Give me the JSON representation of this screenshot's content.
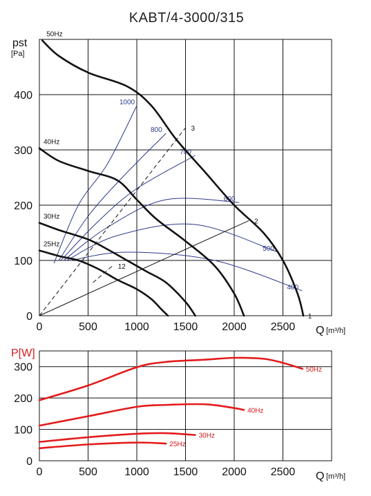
{
  "chart_data": [
    {
      "type": "line",
      "title": "KABT/4-3000/315",
      "ylabel_main": "pst",
      "ylabel_unit": "[Pa]",
      "xlabel_main": "Q",
      "xlabel_unit": "[m³/h]",
      "xlim": [
        0,
        3000
      ],
      "ylim": [
        0,
        500
      ],
      "x_ticks": [
        0,
        500,
        1000,
        1500,
        2000,
        2500
      ],
      "y_ticks": [
        0,
        100,
        200,
        300,
        400
      ],
      "grid": true,
      "speed_curves": [
        {
          "name": "50Hz",
          "x": [
            30,
            200,
            500,
            900,
            1150,
            1400,
            1700,
            2000,
            2300,
            2500,
            2650,
            2710
          ],
          "y": [
            498,
            470,
            440,
            415,
            380,
            320,
            260,
            200,
            150,
            100,
            40,
            0
          ]
        },
        {
          "name": "40Hz",
          "x": [
            0,
            200,
            500,
            800,
            1000,
            1200,
            1500,
            1800,
            2000,
            2100
          ],
          "y": [
            303,
            280,
            262,
            245,
            210,
            175,
            135,
            90,
            40,
            0
          ]
        },
        {
          "name": "30Hz",
          "x": [
            0,
            200,
            500,
            700,
            900,
            1100,
            1300,
            1500,
            1600
          ],
          "y": [
            168,
            155,
            138,
            120,
            100,
            80,
            60,
            25,
            0
          ]
        },
        {
          "name": "25Hz",
          "x": [
            0,
            200,
            400,
            600,
            800,
            1000,
            1150,
            1250,
            1320
          ],
          "y": [
            118,
            108,
            100,
            85,
            65,
            48,
            30,
            12,
            0
          ]
        }
      ],
      "speed_labels": [
        "50Hz",
        "40Hz",
        "30Hz",
        "25Hz"
      ],
      "operating_curves": [
        {
          "name": "1",
          "x": [
            0,
            2700
          ],
          "y": [
            0,
            0
          ]
        },
        {
          "name": "2",
          "x": [
            0,
            2150
          ],
          "y": [
            0,
            172
          ]
        },
        {
          "name": "3",
          "x": [
            0,
            1500
          ],
          "y": [
            0,
            340
          ]
        },
        {
          "name": "12",
          "x": [
            550,
            750
          ],
          "y": [
            60,
            90
          ]
        }
      ],
      "operating_labels": [
        "1",
        "2",
        "3",
        "12"
      ],
      "efficiency_curves": [
        {
          "name": "1000",
          "x": [
            150,
            400,
            700,
            1000
          ],
          "y": [
            95,
            200,
            275,
            380
          ]
        },
        {
          "name": "800",
          "x": [
            200,
            500,
            850,
            1300
          ],
          "y": [
            100,
            180,
            250,
            330
          ]
        },
        {
          "name": "700",
          "x": [
            220,
            600,
            1000,
            1600
          ],
          "y": [
            100,
            170,
            230,
            290
          ]
        },
        {
          "name": "600",
          "x": [
            250,
            700,
            1300,
            2050
          ],
          "y": [
            100,
            160,
            210,
            205
          ]
        },
        {
          "name": "500",
          "x": [
            280,
            800,
            1600,
            2450
          ],
          "y": [
            100,
            145,
            165,
            115
          ]
        },
        {
          "name": "400",
          "x": [
            320,
            900,
            1800,
            2700
          ],
          "y": [
            100,
            115,
            100,
            45
          ]
        }
      ],
      "efficiency_labels": [
        "1000",
        "800",
        "700",
        "600",
        "500",
        "400"
      ]
    },
    {
      "type": "line",
      "ylabel": "P[W]",
      "xlabel_main": "Q",
      "xlabel_unit": "[m³/h]",
      "xlim": [
        0,
        3000
      ],
      "ylim": [
        0,
        350
      ],
      "x_ticks": [
        0,
        500,
        1000,
        1500,
        2000,
        2500
      ],
      "y_ticks": [
        0,
        100,
        200,
        300
      ],
      "grid": true,
      "color": "#e31b1b",
      "series": [
        {
          "name": "50Hz",
          "x": [
            0,
            500,
            1000,
            1300,
            1700,
            2000,
            2300,
            2500,
            2700
          ],
          "y": [
            193,
            240,
            298,
            315,
            322,
            328,
            325,
            312,
            293
          ]
        },
        {
          "name": "40Hz",
          "x": [
            0,
            500,
            1000,
            1300,
            1700,
            2000,
            2100
          ],
          "y": [
            112,
            142,
            172,
            178,
            180,
            168,
            162
          ]
        },
        {
          "name": "30Hz",
          "x": [
            0,
            500,
            1000,
            1300,
            1600
          ],
          "y": [
            60,
            75,
            86,
            88,
            82
          ]
        },
        {
          "name": "25Hz",
          "x": [
            0,
            500,
            1000,
            1300
          ],
          "y": [
            40,
            52,
            58,
            55
          ]
        }
      ],
      "series_labels": [
        "50Hz",
        "40Hz",
        "30Hz",
        "25Hz"
      ]
    }
  ]
}
